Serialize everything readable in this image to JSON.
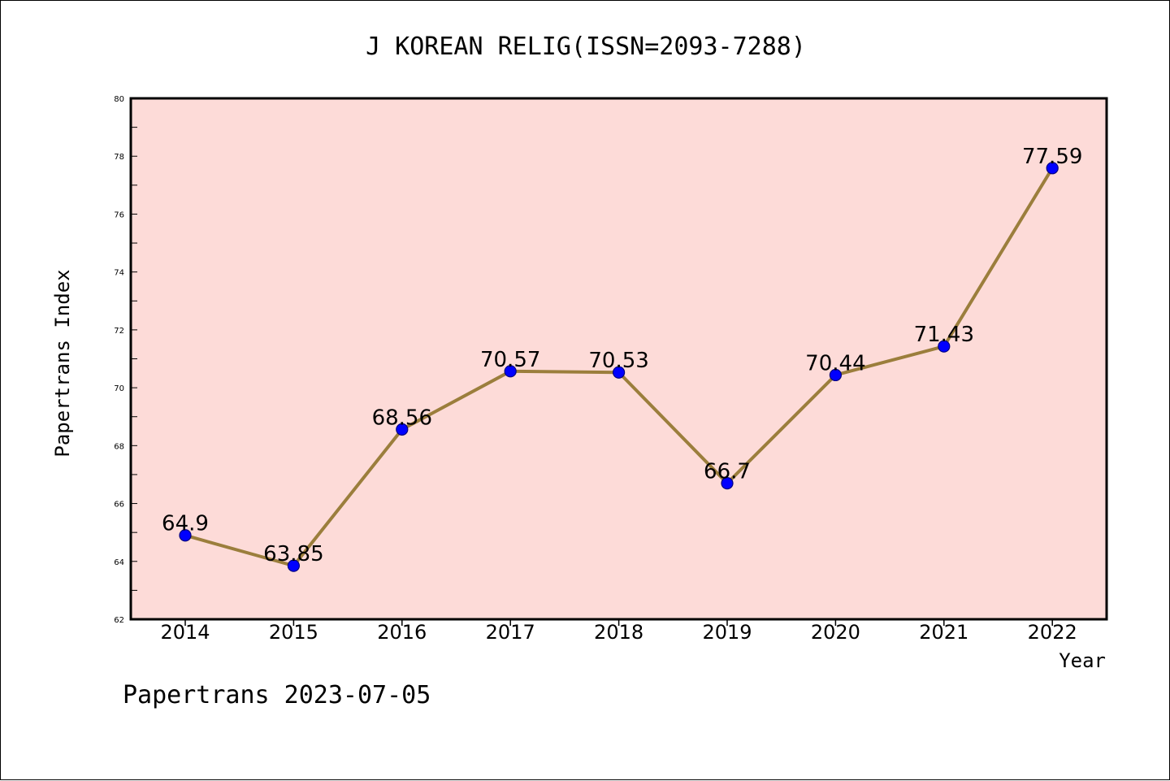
{
  "colors": {
    "plot_background": "#fddbd8",
    "line": "#9b7e3c",
    "marker_fill": "#0000ff",
    "marker_stroke": "#000080",
    "axis": "#000000"
  },
  "chart_data": {
    "type": "line",
    "title": "J KOREAN RELIG(ISSN=2093-7288)",
    "xlabel": "Year",
    "ylabel": "Papertrans Index",
    "categories": [
      "2014",
      "2015",
      "2016",
      "2017",
      "2018",
      "2019",
      "2020",
      "2021",
      "2022"
    ],
    "series": [
      {
        "values": [
          64.9,
          63.85,
          68.56,
          70.57,
          70.53,
          66.7,
          70.44,
          71.43,
          77.59
        ],
        "labels": [
          "64.9",
          "63.85",
          "68.56",
          "70.57",
          "70.53",
          "66.7",
          "70.44",
          "71.43",
          "77.59"
        ]
      }
    ],
    "ylim": [
      62,
      80
    ],
    "yticks": [
      "62",
      "64",
      "66",
      "68",
      "70",
      "72",
      "74",
      "76",
      "78",
      "80"
    ],
    "grid": false,
    "legend": "none",
    "footer": "Papertrans 2023-07-05"
  }
}
